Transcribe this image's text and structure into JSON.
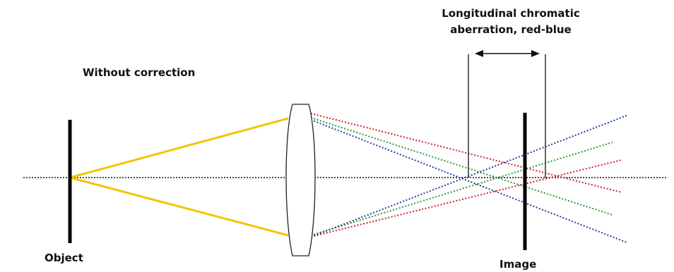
{
  "labels": {
    "heading": "Without correction",
    "aberration_line1": "Longitudinal chromatic",
    "aberration_line2": "aberration, red-blue",
    "object": "Object",
    "image": "Image"
  },
  "colors": {
    "object_rays": "#f2c500",
    "red_rays": "#d0202a",
    "green_rays": "#2a9a3a",
    "blue_rays": "#1f3f9a",
    "axis": "#111111",
    "object_bar": "#000000",
    "image_bar": "#000000",
    "lens_outline": "#222222"
  }
}
